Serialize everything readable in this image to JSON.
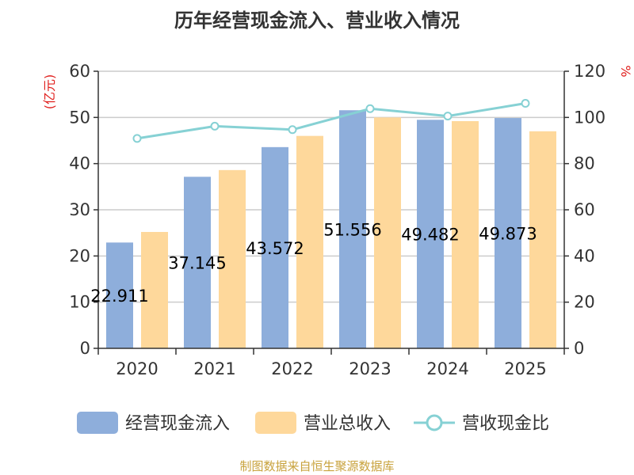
{
  "source_text": "制图数据来自恒生聚源数据库",
  "colors": {
    "cash": "#8eaedb",
    "revenue": "#fed89b",
    "ratio": "#86d1d4",
    "axis_unit": "#e0201e",
    "source": "#c8a23c",
    "grid": "#cccccc",
    "axis": "#333333"
  },
  "chart_data": {
    "type": "bar",
    "title": "历年经营现金流入、营业收入情况",
    "categories": [
      "2020",
      "2021",
      "2022",
      "2023",
      "2024",
      "2025"
    ],
    "y_left": {
      "unit": "(亿元)",
      "range": [
        0,
        60
      ],
      "ticks": [
        0,
        10,
        20,
        30,
        40,
        50,
        60
      ]
    },
    "y_right": {
      "unit": "%",
      "range": [
        0,
        120
      ],
      "ticks": [
        0,
        20,
        40,
        60,
        80,
        100,
        120
      ]
    },
    "grid": true,
    "legend_position": "bottom",
    "series": [
      {
        "name": "经营现金流入",
        "type": "bar",
        "axis": "left",
        "values": [
          22.911,
          37.145,
          43.572,
          51.556,
          49.482,
          49.873
        ],
        "labels": [
          "22.911",
          "37.145",
          "43.572",
          "51.556",
          "49.482",
          "49.873"
        ]
      },
      {
        "name": "营业总收入",
        "type": "bar",
        "axis": "left",
        "values": [
          25.2,
          38.6,
          46.0,
          50.0,
          49.2,
          47.0
        ]
      },
      {
        "name": "营收现金比",
        "type": "line",
        "axis": "right",
        "values": [
          90.9,
          96.2,
          94.7,
          103.8,
          100.6,
          106.1
        ]
      }
    ]
  }
}
